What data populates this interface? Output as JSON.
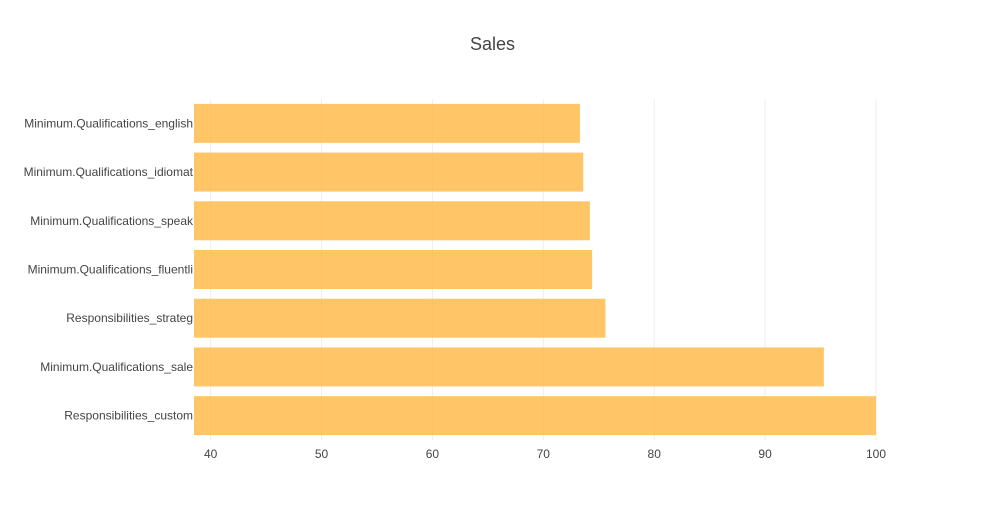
{
  "chart_data": {
    "type": "bar",
    "orientation": "horizontal",
    "title": "Sales",
    "xlabel": "",
    "ylabel": "",
    "categories": [
      "Minimum.Qualifications_english",
      "Minimum.Qualifications_idiomat",
      "Minimum.Qualifications_speak",
      "Minimum.Qualifications_fluentli",
      "Responsibilities_strateg",
      "Minimum.Qualifications_sale",
      "Responsibilities_custom"
    ],
    "values": [
      73.3,
      73.6,
      74.2,
      74.4,
      75.6,
      95.3,
      100
    ],
    "xlim": [
      38.5,
      100
    ],
    "xticks": [
      40,
      50,
      60,
      70,
      80,
      90,
      100
    ],
    "grid": true,
    "legend": "none",
    "bar_color": "#FFB845"
  }
}
